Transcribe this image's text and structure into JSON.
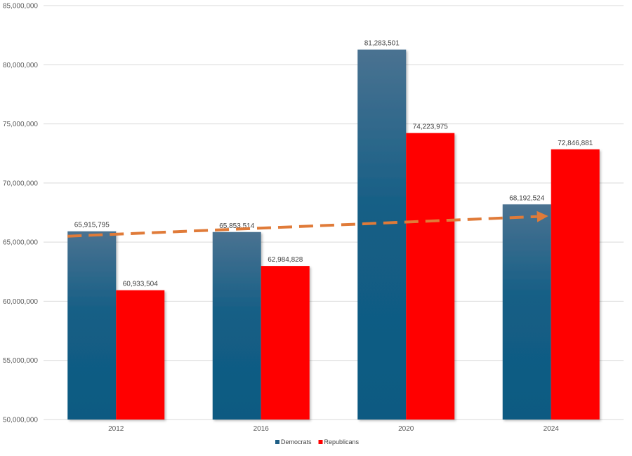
{
  "chart_data": {
    "type": "bar",
    "title": "",
    "xlabel": "",
    "ylabel": "",
    "categories": [
      "2012",
      "2016",
      "2020",
      "2024"
    ],
    "series": [
      {
        "name": "Democrats",
        "values": [
          65915795,
          65853514,
          81283501,
          68192524
        ],
        "color": "#1f5f86"
      },
      {
        "name": "Republicans",
        "values": [
          60933504,
          62984828,
          74223975,
          72846881
        ],
        "color": "#ff0000"
      }
    ],
    "data_labels": {
      "Democrats": [
        "65,915,795",
        "65,853,514",
        "81,283,501",
        "68,192,524"
      ],
      "Republicans": [
        "60,933,504",
        "62,984,828",
        "74,223,975",
        "72,846,881"
      ]
    },
    "ylim": [
      50000000,
      85000000
    ],
    "y_ticks": [
      50000000,
      55000000,
      60000000,
      65000000,
      70000000,
      75000000,
      80000000,
      85000000
    ],
    "y_tick_labels": [
      "50,000,000",
      "55,000,000",
      "60,000,000",
      "65,000,000",
      "70,000,000",
      "75,000,000",
      "80,000,000",
      "85,000,000"
    ],
    "grid": true,
    "legend_position": "bottom",
    "annotation": {
      "type": "dashed-arrow",
      "color": "#e07b39",
      "description": "trend",
      "from": {
        "category": "2012",
        "value": 65500000
      },
      "to": {
        "category": "2024",
        "value": 67200000
      }
    }
  }
}
